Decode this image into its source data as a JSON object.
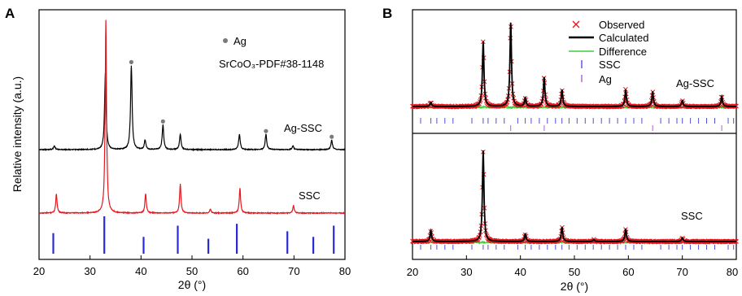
{
  "figure": {
    "panel_a_letter": "A",
    "panel_b_letter": "B"
  },
  "chart_data": [
    {
      "panel": "A",
      "type": "line",
      "xlabel": "2θ (°)",
      "ylabel": "Relative intensity (a.u.)",
      "xlim": [
        20,
        80
      ],
      "xticks": [
        "20",
        "30",
        "40",
        "50",
        "60",
        "70",
        "80"
      ],
      "yticks": "none",
      "legend": {
        "marker_label": "Ag",
        "reference_label": "SrCoO₃-PDF#38-1148"
      },
      "colors": {
        "ag_ssc": "#000000",
        "ssc": "#e8161d",
        "reference": "#2b2bd6",
        "ag_marker": "#7a7a7a"
      },
      "series": [
        {
          "name": "Ag-SSC",
          "label": "Ag-SSC",
          "peaks": [
            {
              "x": 23.0,
              "h": 0.02
            },
            {
              "x": 33.0,
              "h": 0.4
            },
            {
              "x": 38.1,
              "h": 0.44
            },
            {
              "x": 40.8,
              "h": 0.05
            },
            {
              "x": 44.3,
              "h": 0.13
            },
            {
              "x": 47.7,
              "h": 0.08
            },
            {
              "x": 59.3,
              "h": 0.08
            },
            {
              "x": 64.5,
              "h": 0.08
            },
            {
              "x": 69.8,
              "h": 0.02
            },
            {
              "x": 77.4,
              "h": 0.05
            }
          ],
          "ag_markers": [
            38.1,
            44.3,
            64.5,
            77.4
          ]
        },
        {
          "name": "SSC",
          "label": "SSC",
          "peaks": [
            {
              "x": 23.4,
              "h": 0.1
            },
            {
              "x": 33.1,
              "h": 1.0
            },
            {
              "x": 40.9,
              "h": 0.1
            },
            {
              "x": 47.7,
              "h": 0.15
            },
            {
              "x": 53.6,
              "h": 0.02
            },
            {
              "x": 59.4,
              "h": 0.13
            },
            {
              "x": 69.9,
              "h": 0.04
            }
          ]
        },
        {
          "name": "SrCoO₃-PDF#38-1148",
          "type": "stick",
          "sticks": [
            {
              "x": 22.8,
              "h": 0.55
            },
            {
              "x": 32.8,
              "h": 1.0
            },
            {
              "x": 40.5,
              "h": 0.45
            },
            {
              "x": 47.2,
              "h": 0.75
            },
            {
              "x": 53.2,
              "h": 0.4
            },
            {
              "x": 58.8,
              "h": 0.8
            },
            {
              "x": 68.7,
              "h": 0.6
            },
            {
              "x": 73.8,
              "h": 0.45
            },
            {
              "x": 77.8,
              "h": 0.75
            }
          ]
        }
      ]
    },
    {
      "panel": "B",
      "type": "scatter",
      "xlabel": "2θ (°)",
      "xlim": [
        20,
        80
      ],
      "xticks": [
        "20",
        "30",
        "40",
        "50",
        "60",
        "70",
        "80"
      ],
      "legend": {
        "placement": "top-center",
        "entries": [
          "Observed",
          "Calculated",
          "Difference",
          "SSC",
          "Ag"
        ]
      },
      "colors": {
        "observed": "#e8161d",
        "calculated": "#000000",
        "difference": "#3cd13c",
        "ssc_ticks": "#5050e0",
        "ag_ticks": "#b060c0"
      },
      "subplots": [
        {
          "label": "Ag-SSC",
          "peaks": [
            {
              "x": 23.4,
              "h": 0.05
            },
            {
              "x": 33.1,
              "h": 0.78
            },
            {
              "x": 38.2,
              "h": 1.0
            },
            {
              "x": 40.9,
              "h": 0.1
            },
            {
              "x": 44.4,
              "h": 0.35
            },
            {
              "x": 47.7,
              "h": 0.2
            },
            {
              "x": 59.5,
              "h": 0.2
            },
            {
              "x": 64.5,
              "h": 0.18
            },
            {
              "x": 70.0,
              "h": 0.07
            },
            {
              "x": 77.3,
              "h": 0.12
            }
          ],
          "ssc_reflections": [
            21.5,
            23.4,
            24.5,
            26.0,
            27.5,
            31.0,
            33.1,
            34.0,
            35.5,
            37.0,
            39.5,
            40.9,
            42.0,
            43.5,
            45.0,
            46.5,
            47.7,
            49.0,
            50.5,
            52.0,
            53.5,
            55.0,
            56.5,
            58.0,
            59.5,
            61.0,
            62.5,
            66.0,
            67.5,
            69.0,
            70.0,
            71.5,
            73.0,
            74.5,
            76.0,
            78.5,
            79.5
          ],
          "ag_reflections": [
            38.2,
            44.4,
            64.5,
            77.3
          ]
        },
        {
          "label": "SSC",
          "peaks": [
            {
              "x": 23.4,
              "h": 0.12
            },
            {
              "x": 33.1,
              "h": 1.0
            },
            {
              "x": 40.9,
              "h": 0.08
            },
            {
              "x": 47.7,
              "h": 0.16
            },
            {
              "x": 53.6,
              "h": 0.02
            },
            {
              "x": 59.5,
              "h": 0.14
            },
            {
              "x": 70.0,
              "h": 0.04
            }
          ],
          "ssc_reflections": [
            21.5,
            23.4,
            24.5,
            26.0,
            27.5,
            31.0,
            33.1,
            34.0,
            35.5,
            37.0,
            39.5,
            40.9,
            42.0,
            43.5,
            45.0,
            46.5,
            47.7,
            49.0,
            50.5,
            52.0,
            53.5,
            55.0,
            56.5,
            58.0,
            59.5,
            61.0,
            62.5,
            66.0,
            67.5,
            69.0,
            70.0,
            71.5,
            73.0,
            74.5,
            76.0,
            78.5,
            79.5
          ]
        }
      ]
    }
  ]
}
